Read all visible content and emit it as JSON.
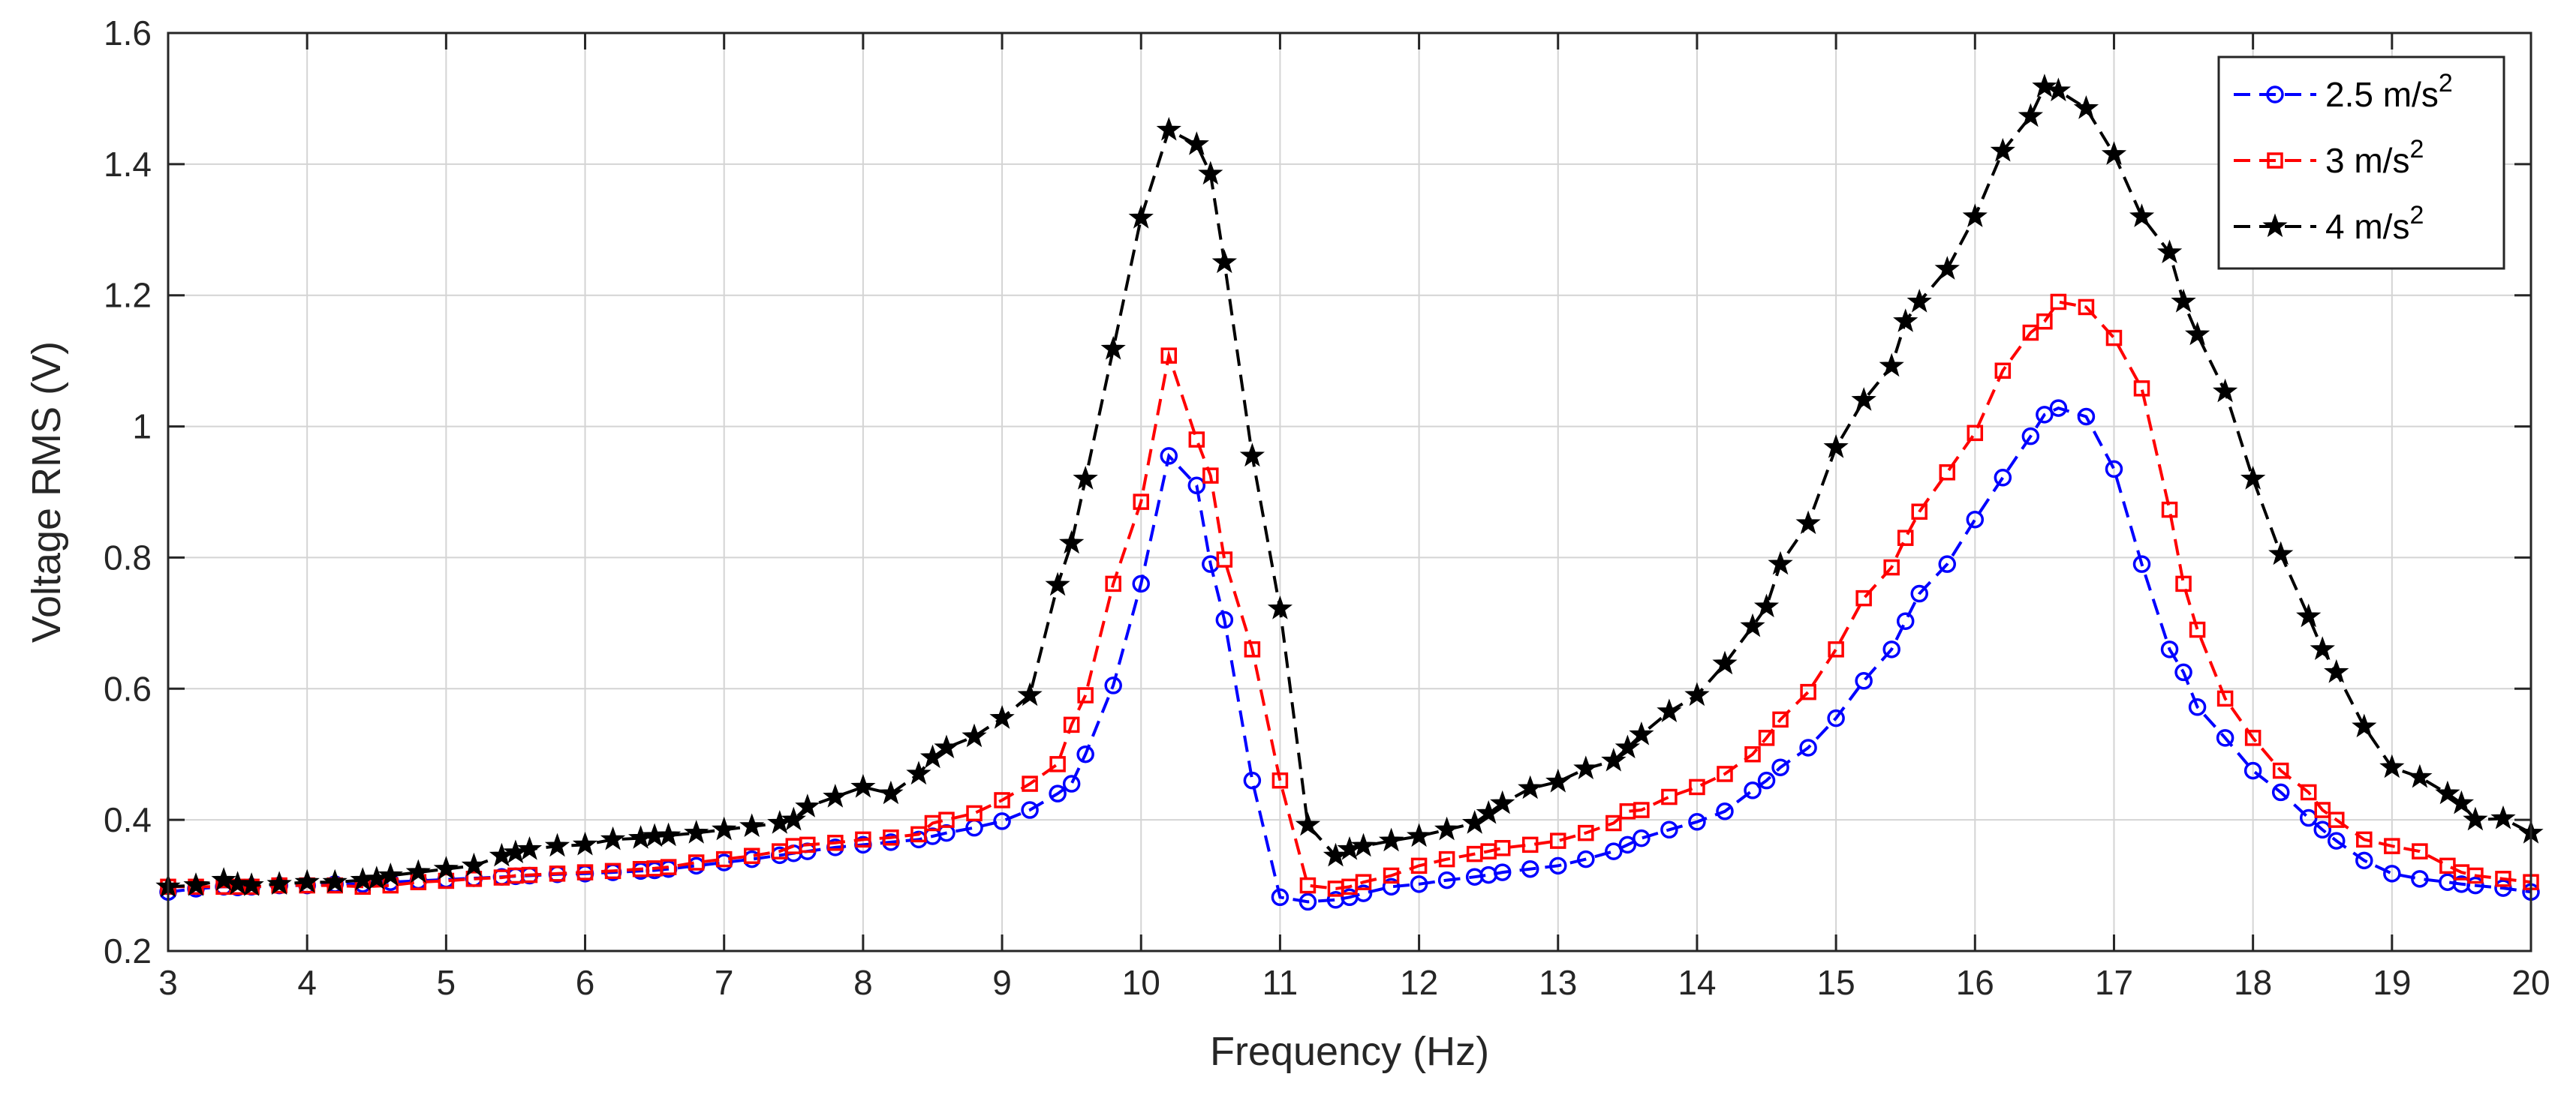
{
  "chart_data": {
    "type": "line",
    "title": "",
    "xlabel": "Frequency (Hz)",
    "ylabel": "Voltage RMS (V)",
    "xlim": [
      3,
      20
    ],
    "ylim": [
      0.2,
      1.6
    ],
    "grid": true,
    "legend_position": "top-right",
    "x_ticks": [
      3,
      4,
      5,
      6,
      7,
      8,
      9,
      10,
      11,
      12,
      13,
      14,
      15,
      16,
      17,
      18,
      19,
      20
    ],
    "y_ticks": [
      0.2,
      0.4,
      0.6,
      0.8,
      1,
      1.2,
      1.4,
      1.6
    ],
    "x_tick_labels": [
      "3",
      "4",
      "5",
      "6",
      "7",
      "8",
      "9",
      "10",
      "11",
      "12",
      "13",
      "14",
      "15",
      "16",
      "17",
      "18",
      "19",
      "20"
    ],
    "y_tick_labels": [
      "0.2",
      "0.4",
      "0.6",
      "0.8",
      "1",
      "1.2",
      "1.4",
      "1.6"
    ],
    "series": [
      {
        "name": "2.5 m/s",
        "superscript": "2",
        "color": "#0000ff",
        "marker": "circle",
        "points": [
          [
            3.0,
            0.29
          ],
          [
            3.2,
            0.295
          ],
          [
            3.4,
            0.298
          ],
          [
            3.5,
            0.297
          ],
          [
            3.6,
            0.298
          ],
          [
            3.8,
            0.3
          ],
          [
            4.0,
            0.3
          ],
          [
            4.2,
            0.302
          ],
          [
            4.4,
            0.302
          ],
          [
            4.6,
            0.305
          ],
          [
            4.8,
            0.307
          ],
          [
            5.0,
            0.309
          ],
          [
            5.2,
            0.311
          ],
          [
            5.4,
            0.313
          ],
          [
            5.5,
            0.314
          ],
          [
            5.6,
            0.315
          ],
          [
            5.8,
            0.317
          ],
          [
            6.0,
            0.318
          ],
          [
            6.2,
            0.32
          ],
          [
            6.4,
            0.322
          ],
          [
            6.5,
            0.323
          ],
          [
            6.6,
            0.325
          ],
          [
            6.8,
            0.33
          ],
          [
            7.0,
            0.335
          ],
          [
            7.2,
            0.34
          ],
          [
            7.4,
            0.346
          ],
          [
            7.5,
            0.349
          ],
          [
            7.6,
            0.352
          ],
          [
            7.8,
            0.358
          ],
          [
            8.0,
            0.362
          ],
          [
            8.2,
            0.366
          ],
          [
            8.4,
            0.37
          ],
          [
            8.5,
            0.375
          ],
          [
            8.6,
            0.38
          ],
          [
            8.8,
            0.388
          ],
          [
            9.0,
            0.398
          ],
          [
            9.2,
            0.415
          ],
          [
            9.4,
            0.44
          ],
          [
            9.5,
            0.455
          ],
          [
            9.6,
            0.5
          ],
          [
            9.8,
            0.605
          ],
          [
            10.0,
            0.76
          ],
          [
            10.2,
            0.955
          ],
          [
            10.4,
            0.91
          ],
          [
            10.5,
            0.79
          ],
          [
            10.6,
            0.705
          ],
          [
            10.8,
            0.46
          ],
          [
            11.0,
            0.282
          ],
          [
            11.2,
            0.275
          ],
          [
            11.4,
            0.278
          ],
          [
            11.5,
            0.282
          ],
          [
            11.6,
            0.288
          ],
          [
            11.8,
            0.298
          ],
          [
            12.0,
            0.302
          ],
          [
            12.2,
            0.308
          ],
          [
            12.4,
            0.313
          ],
          [
            12.5,
            0.316
          ],
          [
            12.6,
            0.32
          ],
          [
            12.8,
            0.325
          ],
          [
            13.0,
            0.33
          ],
          [
            13.2,
            0.34
          ],
          [
            13.4,
            0.352
          ],
          [
            13.5,
            0.362
          ],
          [
            13.6,
            0.372
          ],
          [
            13.8,
            0.385
          ],
          [
            14.0,
            0.397
          ],
          [
            14.2,
            0.413
          ],
          [
            14.4,
            0.445
          ],
          [
            14.5,
            0.46
          ],
          [
            14.6,
            0.48
          ],
          [
            14.8,
            0.51
          ],
          [
            15.0,
            0.555
          ],
          [
            15.2,
            0.612
          ],
          [
            15.4,
            0.66
          ],
          [
            15.5,
            0.703
          ],
          [
            15.6,
            0.745
          ],
          [
            15.8,
            0.79
          ],
          [
            16.0,
            0.858
          ],
          [
            16.2,
            0.922
          ],
          [
            16.4,
            0.985
          ],
          [
            16.5,
            1.018
          ],
          [
            16.6,
            1.028
          ],
          [
            16.8,
            1.015
          ],
          [
            17.0,
            0.935
          ],
          [
            17.2,
            0.79
          ],
          [
            17.4,
            0.66
          ],
          [
            17.5,
            0.625
          ],
          [
            17.6,
            0.572
          ],
          [
            17.8,
            0.525
          ],
          [
            18.0,
            0.475
          ],
          [
            18.2,
            0.442
          ],
          [
            18.4,
            0.403
          ],
          [
            18.5,
            0.385
          ],
          [
            18.6,
            0.368
          ],
          [
            18.8,
            0.338
          ],
          [
            19.0,
            0.318
          ],
          [
            19.2,
            0.31
          ],
          [
            19.4,
            0.305
          ],
          [
            19.5,
            0.302
          ],
          [
            19.6,
            0.3
          ],
          [
            19.8,
            0.296
          ],
          [
            20.0,
            0.29
          ]
        ]
      },
      {
        "name": "3 m/s",
        "superscript": "2",
        "color": "#ff0000",
        "marker": "square",
        "points": [
          [
            3.0,
            0.298
          ],
          [
            3.2,
            0.298
          ],
          [
            3.4,
            0.298
          ],
          [
            3.5,
            0.298
          ],
          [
            3.6,
            0.298
          ],
          [
            3.8,
            0.3
          ],
          [
            4.0,
            0.3
          ],
          [
            4.2,
            0.3
          ],
          [
            4.4,
            0.298
          ],
          [
            4.6,
            0.3
          ],
          [
            4.8,
            0.305
          ],
          [
            5.0,
            0.307
          ],
          [
            5.2,
            0.31
          ],
          [
            5.4,
            0.312
          ],
          [
            5.5,
            0.315
          ],
          [
            5.6,
            0.316
          ],
          [
            5.8,
            0.318
          ],
          [
            6.0,
            0.32
          ],
          [
            6.2,
            0.322
          ],
          [
            6.4,
            0.325
          ],
          [
            6.5,
            0.326
          ],
          [
            6.6,
            0.328
          ],
          [
            6.8,
            0.335
          ],
          [
            7.0,
            0.34
          ],
          [
            7.2,
            0.345
          ],
          [
            7.4,
            0.352
          ],
          [
            7.5,
            0.36
          ],
          [
            7.6,
            0.362
          ],
          [
            7.8,
            0.365
          ],
          [
            8.0,
            0.37
          ],
          [
            8.2,
            0.373
          ],
          [
            8.4,
            0.378
          ],
          [
            8.5,
            0.395
          ],
          [
            8.6,
            0.4
          ],
          [
            8.8,
            0.41
          ],
          [
            9.0,
            0.43
          ],
          [
            9.2,
            0.455
          ],
          [
            9.4,
            0.485
          ],
          [
            9.5,
            0.545
          ],
          [
            9.6,
            0.59
          ],
          [
            9.8,
            0.76
          ],
          [
            10.0,
            0.885
          ],
          [
            10.2,
            1.108
          ],
          [
            10.4,
            0.98
          ],
          [
            10.5,
            0.925
          ],
          [
            10.6,
            0.797
          ],
          [
            10.8,
            0.66
          ],
          [
            11.0,
            0.46
          ],
          [
            11.2,
            0.3
          ],
          [
            11.4,
            0.295
          ],
          [
            11.5,
            0.298
          ],
          [
            11.6,
            0.305
          ],
          [
            11.8,
            0.315
          ],
          [
            12.0,
            0.33
          ],
          [
            12.2,
            0.34
          ],
          [
            12.4,
            0.348
          ],
          [
            12.5,
            0.352
          ],
          [
            12.6,
            0.357
          ],
          [
            12.8,
            0.362
          ],
          [
            13.0,
            0.368
          ],
          [
            13.2,
            0.38
          ],
          [
            13.4,
            0.395
          ],
          [
            13.5,
            0.413
          ],
          [
            13.6,
            0.415
          ],
          [
            13.8,
            0.435
          ],
          [
            14.0,
            0.45
          ],
          [
            14.2,
            0.47
          ],
          [
            14.4,
            0.5
          ],
          [
            14.5,
            0.525
          ],
          [
            14.6,
            0.553
          ],
          [
            14.8,
            0.595
          ],
          [
            15.0,
            0.66
          ],
          [
            15.2,
            0.738
          ],
          [
            15.4,
            0.785
          ],
          [
            15.5,
            0.83
          ],
          [
            15.6,
            0.87
          ],
          [
            15.8,
            0.93
          ],
          [
            16.0,
            0.99
          ],
          [
            16.2,
            1.085
          ],
          [
            16.4,
            1.143
          ],
          [
            16.5,
            1.16
          ],
          [
            16.6,
            1.19
          ],
          [
            16.8,
            1.182
          ],
          [
            17.0,
            1.135
          ],
          [
            17.2,
            1.058
          ],
          [
            17.4,
            0.873
          ],
          [
            17.5,
            0.76
          ],
          [
            17.6,
            0.69
          ],
          [
            17.8,
            0.585
          ],
          [
            18.0,
            0.525
          ],
          [
            18.2,
            0.475
          ],
          [
            18.4,
            0.442
          ],
          [
            18.5,
            0.415
          ],
          [
            18.6,
            0.4
          ],
          [
            18.8,
            0.37
          ],
          [
            19.0,
            0.36
          ],
          [
            19.2,
            0.352
          ],
          [
            19.4,
            0.33
          ],
          [
            19.5,
            0.32
          ],
          [
            19.6,
            0.315
          ],
          [
            19.8,
            0.31
          ],
          [
            20.0,
            0.305
          ]
        ]
      },
      {
        "name": "4 m/s",
        "superscript": "2",
        "color": "#000000",
        "marker": "star",
        "points": [
          [
            3.0,
            0.298
          ],
          [
            3.2,
            0.3
          ],
          [
            3.4,
            0.308
          ],
          [
            3.5,
            0.302
          ],
          [
            3.6,
            0.3
          ],
          [
            3.8,
            0.302
          ],
          [
            4.0,
            0.305
          ],
          [
            4.2,
            0.305
          ],
          [
            4.4,
            0.308
          ],
          [
            4.5,
            0.31
          ],
          [
            4.6,
            0.315
          ],
          [
            4.8,
            0.32
          ],
          [
            5.0,
            0.325
          ],
          [
            5.2,
            0.33
          ],
          [
            5.4,
            0.345
          ],
          [
            5.5,
            0.35
          ],
          [
            5.6,
            0.355
          ],
          [
            5.8,
            0.36
          ],
          [
            6.0,
            0.362
          ],
          [
            6.2,
            0.37
          ],
          [
            6.4,
            0.372
          ],
          [
            6.5,
            0.375
          ],
          [
            6.6,
            0.376
          ],
          [
            6.8,
            0.38
          ],
          [
            7.0,
            0.385
          ],
          [
            7.2,
            0.39
          ],
          [
            7.4,
            0.395
          ],
          [
            7.5,
            0.4
          ],
          [
            7.6,
            0.42
          ],
          [
            7.8,
            0.435
          ],
          [
            8.0,
            0.45
          ],
          [
            8.2,
            0.44
          ],
          [
            8.4,
            0.47
          ],
          [
            8.5,
            0.495
          ],
          [
            8.6,
            0.51
          ],
          [
            8.8,
            0.527
          ],
          [
            9.0,
            0.555
          ],
          [
            9.2,
            0.59
          ],
          [
            9.4,
            0.758
          ],
          [
            9.5,
            0.822
          ],
          [
            9.6,
            0.92
          ],
          [
            9.8,
            1.118
          ],
          [
            10.0,
            1.318
          ],
          [
            10.2,
            1.452
          ],
          [
            10.4,
            1.43
          ],
          [
            10.5,
            1.385
          ],
          [
            10.6,
            1.25
          ],
          [
            10.8,
            0.955
          ],
          [
            11.0,
            0.722
          ],
          [
            11.2,
            0.392
          ],
          [
            11.4,
            0.345
          ],
          [
            11.5,
            0.355
          ],
          [
            11.6,
            0.36
          ],
          [
            11.8,
            0.368
          ],
          [
            12.0,
            0.375
          ],
          [
            12.2,
            0.385
          ],
          [
            12.4,
            0.395
          ],
          [
            12.5,
            0.41
          ],
          [
            12.6,
            0.425
          ],
          [
            12.8,
            0.448
          ],
          [
            13.0,
            0.458
          ],
          [
            13.2,
            0.478
          ],
          [
            13.4,
            0.49
          ],
          [
            13.5,
            0.51
          ],
          [
            13.6,
            0.53
          ],
          [
            13.8,
            0.565
          ],
          [
            14.0,
            0.59
          ],
          [
            14.2,
            0.638
          ],
          [
            14.4,
            0.695
          ],
          [
            14.5,
            0.725
          ],
          [
            14.6,
            0.79
          ],
          [
            14.8,
            0.852
          ],
          [
            15.0,
            0.968
          ],
          [
            15.2,
            1.04
          ],
          [
            15.4,
            1.092
          ],
          [
            15.5,
            1.16
          ],
          [
            15.6,
            1.19
          ],
          [
            15.8,
            1.24
          ],
          [
            16.0,
            1.32
          ],
          [
            16.2,
            1.42
          ],
          [
            16.4,
            1.473
          ],
          [
            16.5,
            1.518
          ],
          [
            16.6,
            1.512
          ],
          [
            16.8,
            1.485
          ],
          [
            17.0,
            1.415
          ],
          [
            17.2,
            1.32
          ],
          [
            17.4,
            1.265
          ],
          [
            17.5,
            1.19
          ],
          [
            17.6,
            1.14
          ],
          [
            17.8,
            1.053
          ],
          [
            18.0,
            0.92
          ],
          [
            18.2,
            0.805
          ],
          [
            18.4,
            0.71
          ],
          [
            18.5,
            0.66
          ],
          [
            18.6,
            0.625
          ],
          [
            18.8,
            0.542
          ],
          [
            19.0,
            0.48
          ],
          [
            19.2,
            0.465
          ],
          [
            19.4,
            0.44
          ],
          [
            19.5,
            0.425
          ],
          [
            19.6,
            0.4
          ],
          [
            19.8,
            0.402
          ],
          [
            20.0,
            0.38
          ]
        ]
      }
    ]
  }
}
